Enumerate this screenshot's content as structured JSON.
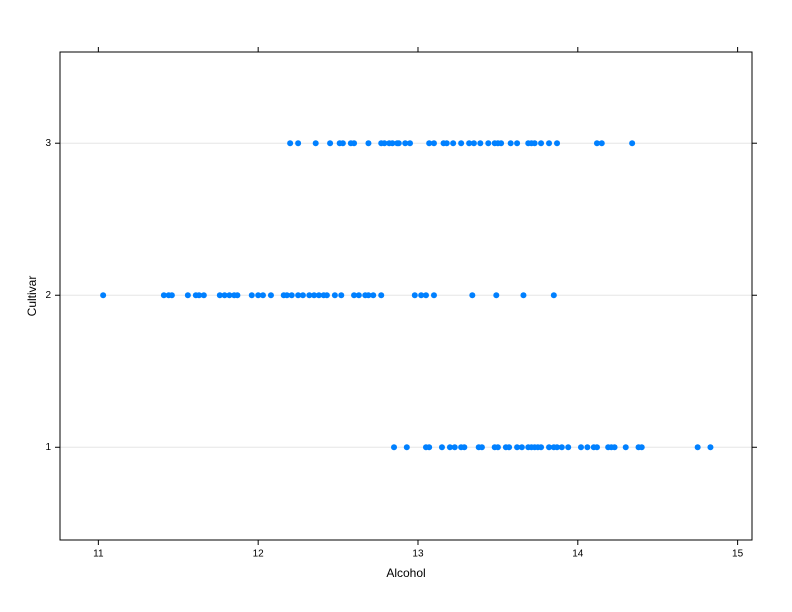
{
  "chart_data": {
    "type": "dotplot",
    "x_label": "Alcohol",
    "y_label": "Cultivar",
    "categories": [
      "1",
      "2",
      "3"
    ],
    "values": [
      [
        12.85,
        12.93,
        13.05,
        13.07,
        13.15,
        13.2,
        13.23,
        13.27,
        13.29,
        13.38,
        13.4,
        13.48,
        13.5,
        13.55,
        13.57,
        13.62,
        13.65,
        13.69,
        13.71,
        13.73,
        13.75,
        13.77,
        13.82,
        13.85,
        13.87,
        13.9,
        13.94,
        14.02,
        14.06,
        14.1,
        14.12,
        14.19,
        14.21,
        14.23,
        14.3,
        14.38,
        14.4,
        14.75,
        14.83
      ],
      [
        11.03,
        11.41,
        11.44,
        11.46,
        11.56,
        11.61,
        11.63,
        11.66,
        11.76,
        11.79,
        11.82,
        11.85,
        11.87,
        11.96,
        12.0,
        12.03,
        12.08,
        12.16,
        12.18,
        12.21,
        12.25,
        12.28,
        12.32,
        12.35,
        12.38,
        12.41,
        12.43,
        12.48,
        12.52,
        12.6,
        12.63,
        12.67,
        12.69,
        12.72,
        12.77,
        12.98,
        13.02,
        13.05,
        13.1,
        13.34,
        13.49,
        13.66,
        13.85
      ],
      [
        12.2,
        12.25,
        12.36,
        12.45,
        12.51,
        12.53,
        12.58,
        12.6,
        12.69,
        12.77,
        12.79,
        12.82,
        12.84,
        12.87,
        12.88,
        12.92,
        12.95,
        13.07,
        13.1,
        13.16,
        13.18,
        13.22,
        13.27,
        13.32,
        13.35,
        13.39,
        13.44,
        13.48,
        13.5,
        13.52,
        13.58,
        13.62,
        13.69,
        13.71,
        13.73,
        13.77,
        13.82,
        13.87,
        14.12,
        14.15,
        14.34
      ]
    ],
    "color": "#0080ff",
    "xlim": [
      10.76,
      15.09
    ],
    "xticks": [
      11,
      12,
      13,
      14,
      15
    ],
    "ylim": [
      0.39,
      3.6
    ],
    "grid": true
  }
}
